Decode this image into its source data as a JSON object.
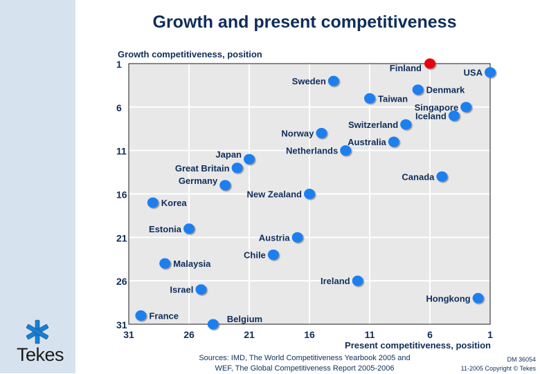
{
  "brand": {
    "name": "Tekes",
    "logo_icon": "asterisk-logo-icon",
    "band_color": "#d6e3ee",
    "logo_color": "#1a7fd4"
  },
  "footer": {
    "sources_line1": "Sources: IMD, The World Competitiveness Yearbook 2005 and",
    "sources_line2": "WEF, The Global Competitiveness Report 2005-2006",
    "doc_id": "DM 36054",
    "copyright": "11-2005 Copyright © Tekes"
  },
  "chart_data": {
    "type": "scatter",
    "title": "Growth and present competitiveness",
    "xlabel": "Present competitiveness, position",
    "ylabel": "Growth competitiveness, position",
    "xlim": [
      31,
      1
    ],
    "ylim": [
      31,
      1
    ],
    "x_reversed": true,
    "y_reversed": true,
    "xticks": [
      31,
      26,
      21,
      16,
      11,
      6,
      1
    ],
    "yticks": [
      1,
      6,
      11,
      16,
      21,
      26,
      31
    ],
    "grid": true,
    "colors": {
      "default": "#1a7fef",
      "highlight": "#e8000e",
      "plot_bg": "#e8e8e8",
      "text": "#0f2d5a"
    },
    "points": [
      {
        "label": "Finland",
        "x": 6,
        "y": 1,
        "highlight": true,
        "label_side": "left"
      },
      {
        "label": "USA",
        "x": 1,
        "y": 2,
        "label_side": "left"
      },
      {
        "label": "Sweden",
        "x": 14,
        "y": 3,
        "label_side": "left"
      },
      {
        "label": "Denmark",
        "x": 7,
        "y": 4,
        "label_side": "right"
      },
      {
        "label": "Taiwan",
        "x": 11,
        "y": 5,
        "label_side": "right"
      },
      {
        "label": "Singapore",
        "x": 3,
        "y": 6,
        "label_side": "left"
      },
      {
        "label": "Iceland",
        "x": 4,
        "y": 7,
        "label_side": "left"
      },
      {
        "label": "Switzerland",
        "x": 8,
        "y": 8,
        "label_side": "left"
      },
      {
        "label": "Norway",
        "x": 15,
        "y": 9,
        "label_side": "left"
      },
      {
        "label": "Australia",
        "x": 9,
        "y": 10,
        "label_side": "left"
      },
      {
        "label": "Netherlands",
        "x": 13,
        "y": 11,
        "label_side": "left"
      },
      {
        "label": "Japan",
        "x": 21,
        "y": 12,
        "label_side": "left"
      },
      {
        "label": "Great Britain",
        "x": 22,
        "y": 13,
        "label_side": "left"
      },
      {
        "label": "Canada",
        "x": 5,
        "y": 14,
        "label_side": "left"
      },
      {
        "label": "Germany",
        "x": 23,
        "y": 15,
        "label_side": "left"
      },
      {
        "label": "New Zealand",
        "x": 16,
        "y": 16,
        "label_side": "left"
      },
      {
        "label": "Korea",
        "x": 29,
        "y": 17,
        "label_side": "right"
      },
      {
        "label": "Estonia",
        "x": 26,
        "y": 20,
        "label_side": "left"
      },
      {
        "label": "Austria",
        "x": 17,
        "y": 21,
        "label_side": "left"
      },
      {
        "label": "Chile",
        "x": 19,
        "y": 23,
        "label_side": "left"
      },
      {
        "label": "Malaysia",
        "x": 28,
        "y": 24,
        "label_side": "right"
      },
      {
        "label": "Ireland",
        "x": 12,
        "y": 26,
        "label_side": "left"
      },
      {
        "label": "Israel",
        "x": 25,
        "y": 27,
        "label_side": "left"
      },
      {
        "label": "Hongkong",
        "x": 2,
        "y": 28,
        "label_side": "left"
      },
      {
        "label": "France",
        "x": 30,
        "y": 30,
        "label_side": "right"
      },
      {
        "label": "Belgium",
        "x": 24,
        "y": 31,
        "label_side": "right-up"
      }
    ]
  }
}
